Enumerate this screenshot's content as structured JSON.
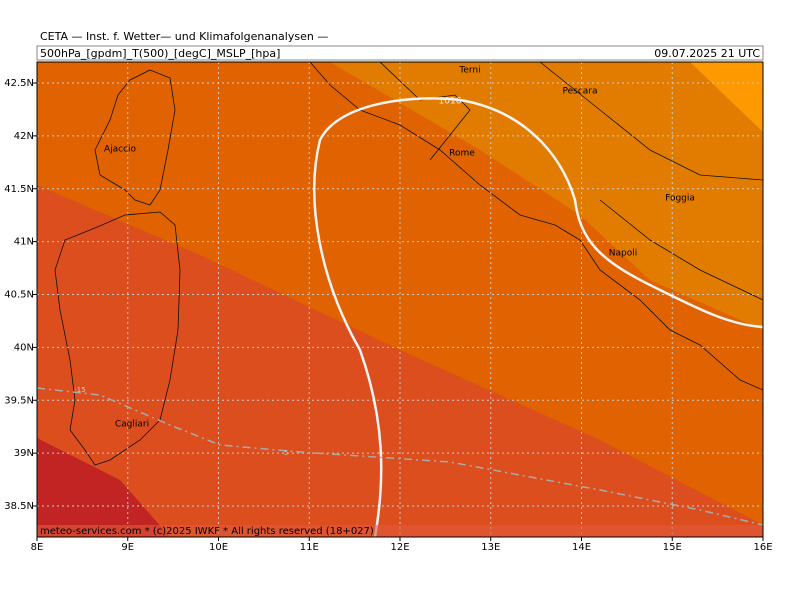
{
  "header": {
    "title": "CETA — Inst. f. Wetter— und Klimafolgenanalysen —",
    "fields": "500hPa_[gpdm]_T(500)_[degC]_MSLP_[hpa]",
    "valid_time": "09.07.2025 21 UTC"
  },
  "map": {
    "lon_ticks": [
      {
        "value": 8,
        "label": "8E"
      },
      {
        "value": 9,
        "label": "9E"
      },
      {
        "value": 10,
        "label": "10E"
      },
      {
        "value": 11,
        "label": "11E"
      },
      {
        "value": 12,
        "label": "12E"
      },
      {
        "value": 13,
        "label": "13E"
      },
      {
        "value": 14,
        "label": "14E"
      },
      {
        "value": 15,
        "label": "15E"
      },
      {
        "value": 16,
        "label": "16E"
      }
    ],
    "lat_ticks": [
      {
        "value": 38.5,
        "label": "38.5N"
      },
      {
        "value": 39,
        "label": "39N"
      },
      {
        "value": 39.5,
        "label": "39.5N"
      },
      {
        "value": 40,
        "label": "40N"
      },
      {
        "value": 40.5,
        "label": "40.5N"
      },
      {
        "value": 41,
        "label": "41N"
      },
      {
        "value": 41.5,
        "label": "41.5N"
      },
      {
        "value": 42,
        "label": "42N"
      },
      {
        "value": 42.5,
        "label": "42.5N"
      }
    ],
    "places": [
      "Terni",
      "Pescara",
      "Rome",
      "Ajaccio",
      "Foggia",
      "Napoli",
      "Cagliari"
    ],
    "isobar_label": "1016",
    "contour_labels": [
      "-15",
      "-5"
    ]
  },
  "footer": "meteo-services.com * (c)2025 IWKF * All rights reserved (18+027)"
}
